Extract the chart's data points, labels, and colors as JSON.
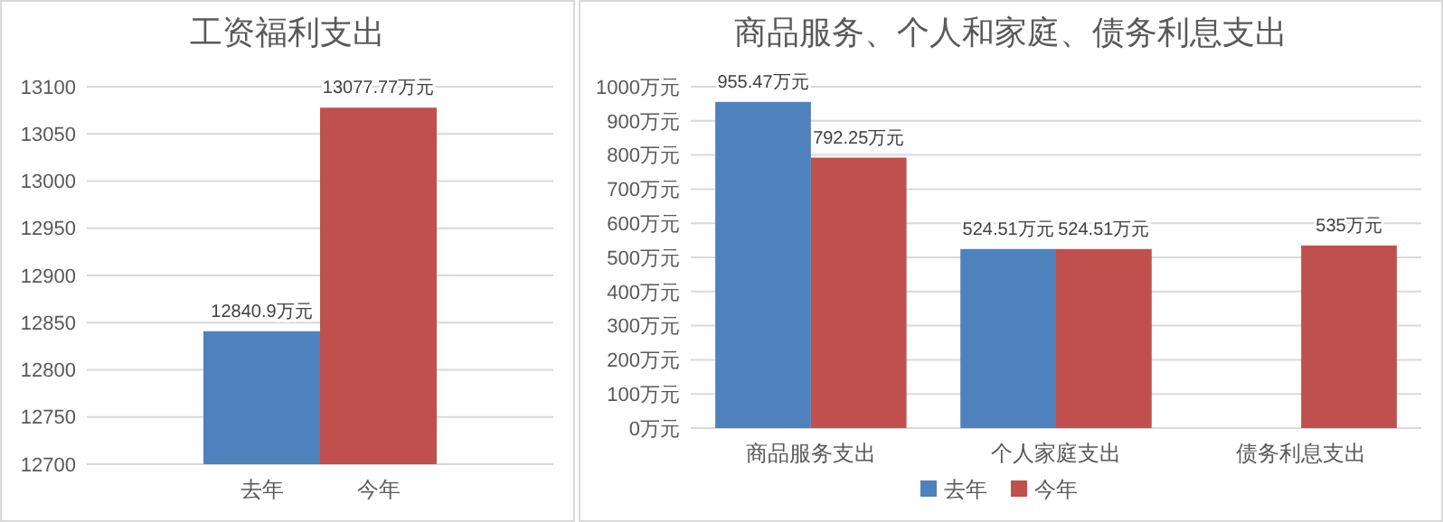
{
  "chart_data": [
    {
      "type": "bar",
      "title": "工资福利支出",
      "categories": [
        "去年",
        "今年"
      ],
      "values": [
        12840.9,
        13077.77
      ],
      "colors": [
        "#4f81bd",
        "#c0504d"
      ],
      "value_labels": [
        "12840.9万元",
        "13077.77万元"
      ],
      "ylim": [
        12700,
        13100
      ],
      "yticks": [
        12700,
        12750,
        12800,
        12850,
        12900,
        12950,
        13000,
        13050,
        13100
      ],
      "grid": "y"
    },
    {
      "type": "bar",
      "title": "商品服务、个人和家庭、债务利息支出",
      "categories": [
        "商品服务支出",
        "个人家庭支出",
        "债务利息支出"
      ],
      "series": [
        {
          "name": "去年",
          "color": "#4f81bd",
          "values": [
            955.47,
            524.51,
            null
          ],
          "value_labels": [
            "955.47万元",
            "524.51万元",
            null
          ]
        },
        {
          "name": "今年",
          "color": "#c0504d",
          "values": [
            792.25,
            524.51,
            535
          ],
          "value_labels": [
            "792.25万元",
            "524.51万元",
            "535万元"
          ]
        }
      ],
      "ylim": [
        0,
        1000
      ],
      "yticks": [
        {
          "value": 0,
          "label": "0万元"
        },
        {
          "value": 100,
          "label": "100万元"
        },
        {
          "value": 200,
          "label": "200万元"
        },
        {
          "value": 300,
          "label": "300万元"
        },
        {
          "value": 400,
          "label": "400万元"
        },
        {
          "value": 500,
          "label": "500万元"
        },
        {
          "value": 600,
          "label": "600万元"
        },
        {
          "value": 700,
          "label": "700万元"
        },
        {
          "value": 800,
          "label": "800万元"
        },
        {
          "value": 900,
          "label": "900万元"
        },
        {
          "value": 1000,
          "label": "1000万元"
        }
      ],
      "grid": "y",
      "legend": "bottom"
    }
  ]
}
